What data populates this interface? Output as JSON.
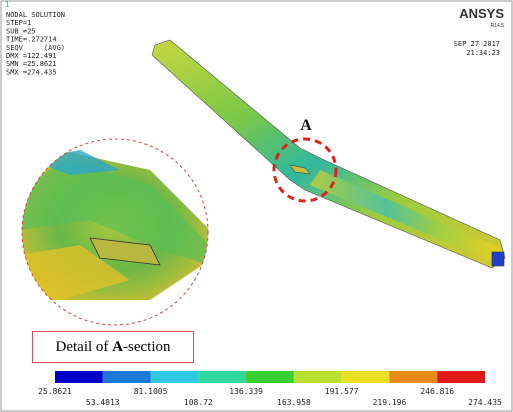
{
  "header": {
    "window": "1",
    "logo": "ANSYS",
    "version": "R14.5",
    "date": "SEP 27 2017",
    "time": "21:34:23",
    "info": [
      "NODAL SOLUTION",
      "STEP=1",
      "SUB =25",
      "TIME=.272714",
      "SEQV     (AVG)",
      "DMX =122.491",
      "SMN =25.8621",
      "SMX =274.435"
    ]
  },
  "section_label": "A",
  "caption": [
    "Detail of ",
    "A",
    "-section"
  ],
  "legend": {
    "colors": [
      "#0000c8",
      "#1a78d8",
      "#30c8e0",
      "#30d8a0",
      "#38d030",
      "#b8e030",
      "#e8e020",
      "#e88a18",
      "#e01818"
    ],
    "labels": [
      "25.8621",
      "53.4813",
      "81.1005",
      "108.72",
      "136.339",
      "163.958",
      "191.577",
      "219.196",
      "246.816",
      "274.435"
    ]
  }
}
